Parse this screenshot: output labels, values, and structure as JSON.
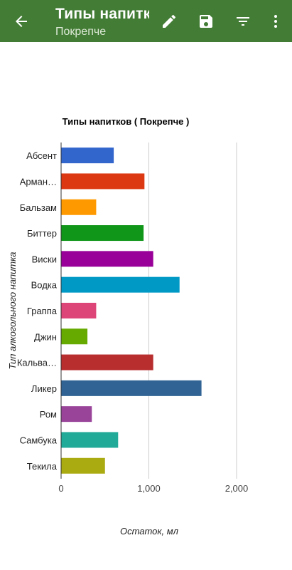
{
  "appbar": {
    "title": "Типы напитков",
    "subtitle": "Покрепче",
    "bg_color": "#437c35"
  },
  "icons": {
    "back": "arrow-back-icon",
    "edit": "pencil-icon",
    "save": "floppy-disk-icon",
    "filter": "filter-icon",
    "more": "more-vert-icon"
  },
  "chart_data": {
    "type": "bar",
    "orientation": "horizontal",
    "title": "Типы напитков ( Покрепче )",
    "xlabel": "Остаток, мл",
    "ylabel": "Тип алкогольного напитка",
    "xlim": [
      0,
      2400
    ],
    "xticks": [
      "0",
      "1,000",
      "2,000"
    ],
    "grid": true,
    "legend": "none",
    "categories": [
      "Абсент",
      "Арман…",
      "Бальзам",
      "Биттер",
      "Виски",
      "Водка",
      "Граппа",
      "Джин",
      "Кальва…",
      "Ликер",
      "Ром",
      "Самбука",
      "Текила"
    ],
    "values": [
      600,
      950,
      400,
      940,
      1050,
      1350,
      400,
      300,
      1050,
      1600,
      350,
      650,
      500
    ],
    "colors": [
      "#3366cc",
      "#dc3912",
      "#ff9900",
      "#109618",
      "#990099",
      "#0099c6",
      "#dd4477",
      "#66aa00",
      "#b82e2e",
      "#316395",
      "#994499",
      "#22aa99",
      "#aaaa11"
    ]
  }
}
